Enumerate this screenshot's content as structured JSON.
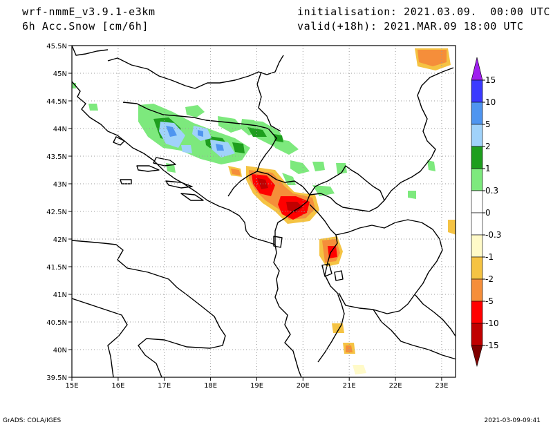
{
  "header": {
    "model": "wrf-nmmE_v3.9.1-e3km",
    "field": "6h Acc.Snow [cm/6h]",
    "init": "initialisation: 2021.03.09.  00:00 UTC",
    "valid": "valid(+18h): 2021.MAR.09 18:00 UTC"
  },
  "map": {
    "lon_labels": [
      "15E",
      "16E",
      "17E",
      "18E",
      "19E",
      "20E",
      "21E",
      "22E",
      "23E"
    ],
    "lat_labels": [
      "45.5N",
      "45N",
      "44.5N",
      "44N",
      "43.5N",
      "43N",
      "42.5N",
      "42N",
      "41.5N",
      "41N",
      "40.5N",
      "40N",
      "39.5N"
    ],
    "lon_range": [
      15,
      23.3
    ],
    "lat_range": [
      39.5,
      45.5
    ],
    "grid": "dotted"
  },
  "colorbar": {
    "levels": [
      "15",
      "10",
      "5",
      "2",
      "1",
      "0.3",
      "0",
      "-0.3",
      "-1",
      "-2",
      "-5",
      "-10",
      "-15"
    ],
    "top_arrow_color": "#a020f0",
    "bottom_arrow_color": "#7f0000",
    "colors": [
      "#3a3aff",
      "#4f95f0",
      "#a0d2fa",
      "#1e9e1e",
      "#7de97d",
      "#ffffff",
      "#ffffff",
      "#fffac8",
      "#f5c343",
      "#f58e3a",
      "#ff0000",
      "#c00000"
    ]
  },
  "footer": {
    "left": "GrADS: COLA/IGES",
    "right": "2021-03-09-09:41"
  }
}
